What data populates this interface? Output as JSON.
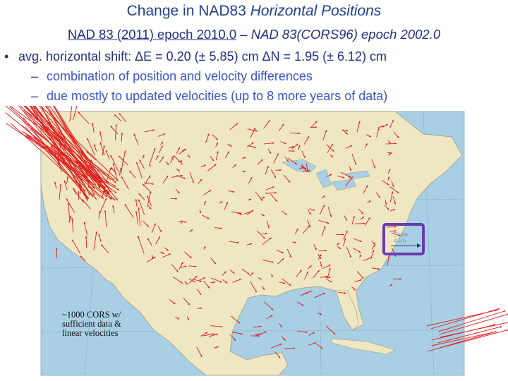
{
  "title": {
    "plain": "Change in NAD83 ",
    "italic": "Horizontal Positions"
  },
  "subtitle": {
    "left": "NAD 83 (2011) epoch 2010.0",
    "sep": "–",
    "right": "NAD 83(CORS96) epoch 2002.0"
  },
  "bullets": [
    {
      "text": "avg. horizontal shift:  ΔE = 0.20 (± 5.85) cm  ΔN = 1.95 (± 6.12) cm"
    }
  ],
  "subbullets": [
    {
      "text": "combination of position and velocity differences"
    },
    {
      "text": "due mostly to updated velocities (up to 8 more years of data)"
    }
  ],
  "map": {
    "note_lines": [
      "~1000 CORS w/",
      "sufficient data &",
      "linear velocities"
    ],
    "scale": {
      "label": "Scale",
      "value": "4 cm"
    },
    "colors": {
      "ocean": "#a8cfe3",
      "land": "#efe7c2",
      "vector": "#e11c1c",
      "box": "#6a3bb0"
    }
  }
}
